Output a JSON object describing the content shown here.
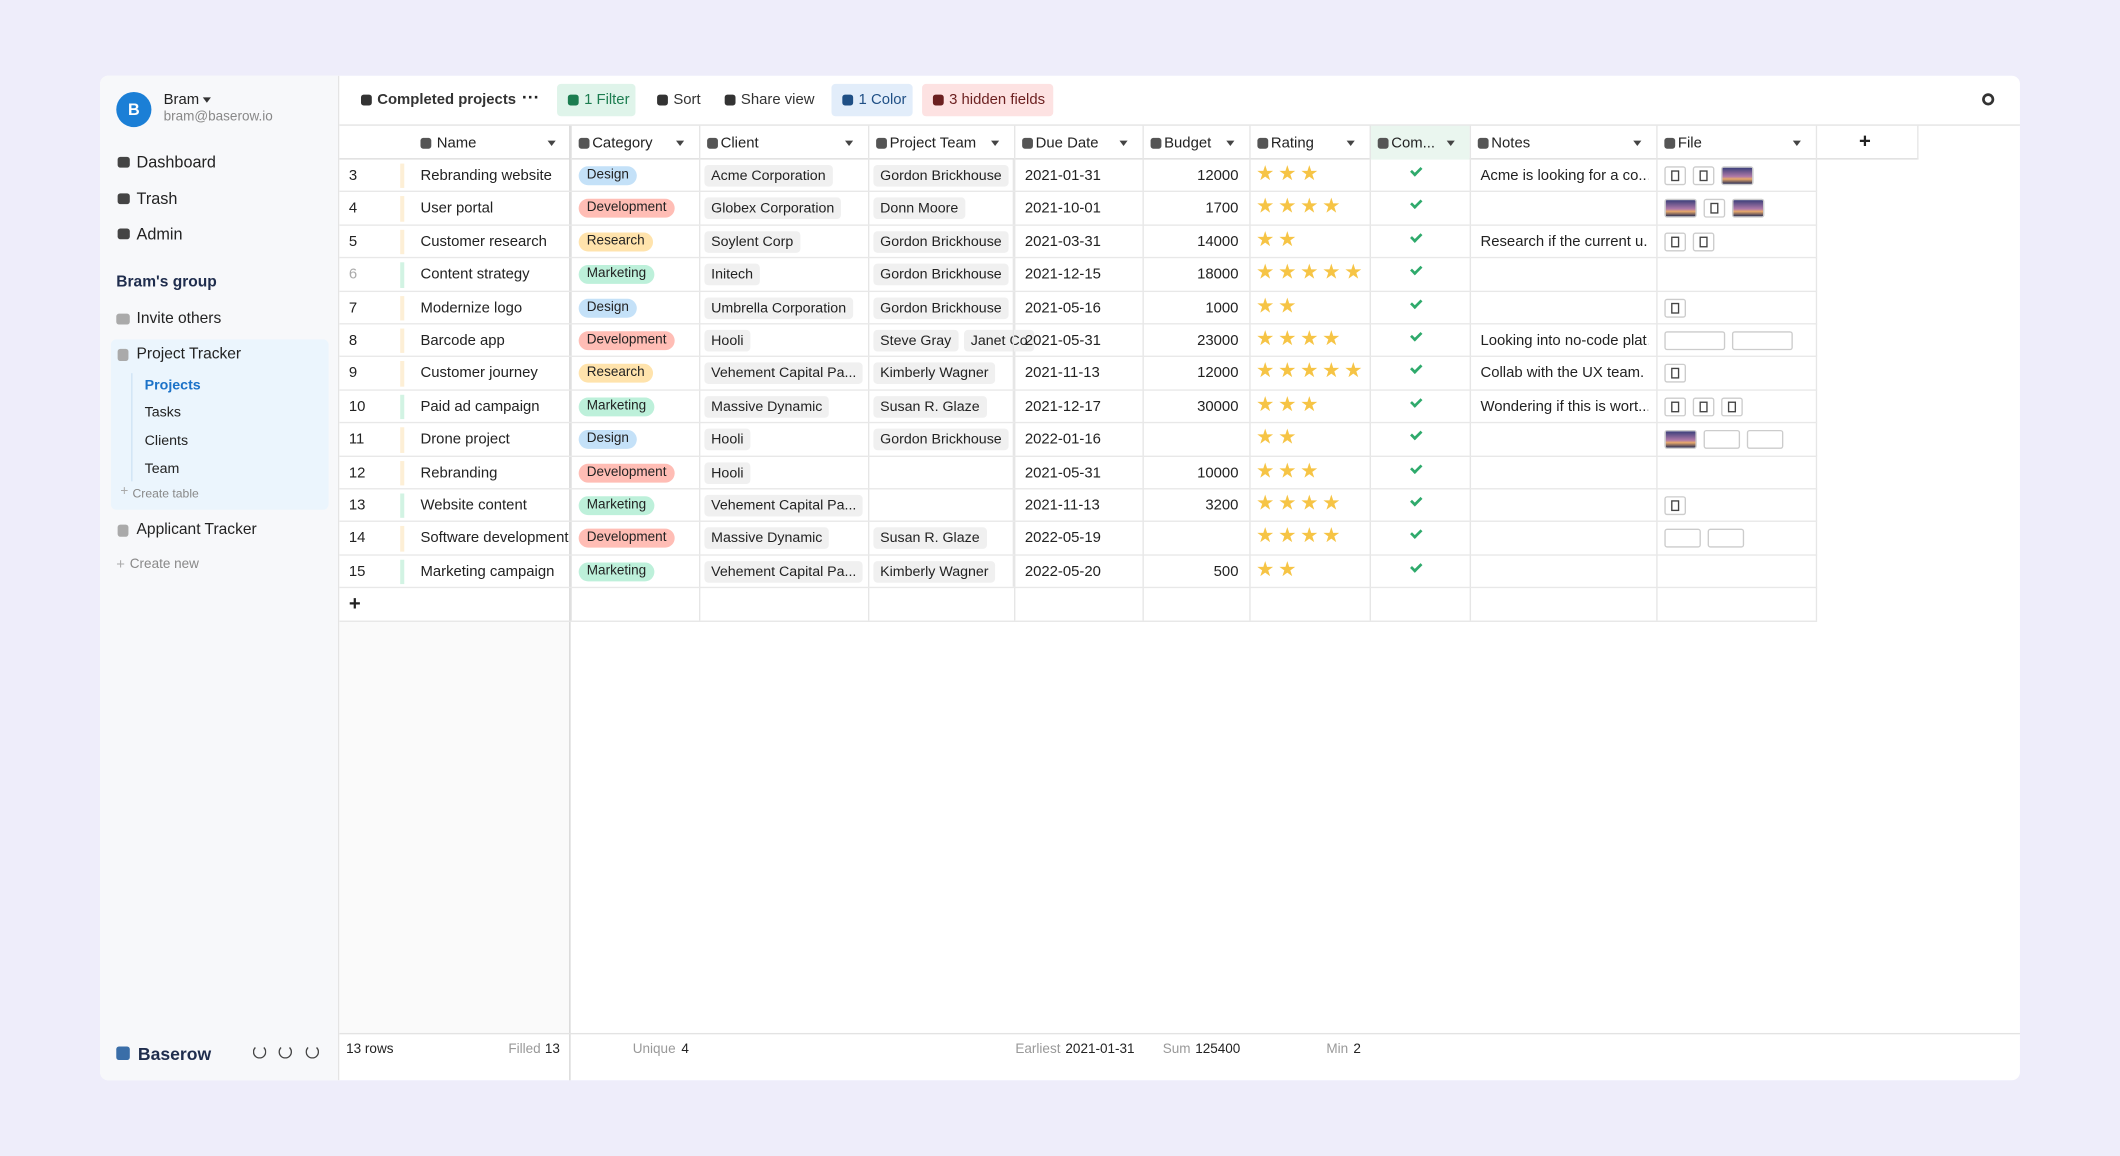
{
  "user": {
    "initial": "B",
    "name": "Bram",
    "email": "bram@baserow.io"
  },
  "nav": [
    "Dashboard",
    "Trash",
    "Admin"
  ],
  "group": {
    "title": "Bram's group",
    "invite": "Invite others"
  },
  "databases": [
    {
      "name": "Project Tracker",
      "tables": [
        "Projects",
        "Tasks",
        "Clients",
        "Team"
      ],
      "create_table": "Create table"
    },
    {
      "name": "Applicant Tracker"
    }
  ],
  "create_new": "Create new",
  "brand": "Baserow",
  "toolbar": {
    "view": "Completed projects",
    "filter": "1 Filter",
    "sort": "Sort",
    "share": "Share view",
    "color": "1 Color",
    "hidden": "3 hidden fields"
  },
  "table": {
    "columns": [
      "Name",
      "Category",
      "Client",
      "Project Team",
      "Due Date",
      "Budget",
      "Rating",
      "Com...",
      "Notes",
      "File"
    ],
    "rows": [
      {
        "id": 3,
        "name": "Rebranding website",
        "category": "Design",
        "client": "Acme Corporation",
        "team": [
          "Gordon Brickhouse"
        ],
        "due_date": "2021-01-31",
        "budget": 12000,
        "rating": 3,
        "completed": true,
        "notes": "Acme is looking for a co..."
      },
      {
        "id": 4,
        "name": "User portal",
        "category": "Development",
        "client": "Globex Corporation",
        "team": [
          "Donn Moore"
        ],
        "due_date": "2021-10-01",
        "budget": 1700,
        "rating": 4,
        "completed": true,
        "notes": null
      },
      {
        "id": 5,
        "name": "Customer research",
        "category": "Research",
        "client": "Soylent Corp",
        "team": [
          "Gordon Brickhouse"
        ],
        "due_date": "2021-03-31",
        "budget": 14000,
        "rating": 2,
        "completed": true,
        "notes": "Research if the current u..."
      },
      {
        "id": 6,
        "name": "Content strategy",
        "category": "Marketing",
        "client": "Initech",
        "team": [
          "Gordon Brickhouse"
        ],
        "due_date": "2021-12-15",
        "budget": 18000,
        "rating": 5,
        "completed": true,
        "notes": null
      },
      {
        "id": 7,
        "name": "Modernize logo",
        "category": "Design",
        "client": "Umbrella Corporation",
        "team": [
          "Gordon Brickhouse"
        ],
        "due_date": "2021-05-16",
        "budget": 1000,
        "rating": 2,
        "completed": true,
        "notes": null
      },
      {
        "id": 8,
        "name": "Barcode app",
        "category": "Development",
        "client": "Hooli",
        "team": [
          "Steve Gray",
          "Janet Co"
        ],
        "due_date": "2021-05-31",
        "budget": 23000,
        "rating": 4,
        "completed": true,
        "notes": "Looking into no-code plat..."
      },
      {
        "id": 9,
        "name": "Customer journey",
        "category": "Research",
        "client": "Vehement Capital Pa...",
        "team": [
          "Kimberly Wagner"
        ],
        "due_date": "2021-11-13",
        "budget": 12000,
        "rating": 5,
        "completed": true,
        "notes": "Collab with the UX team."
      },
      {
        "id": 10,
        "name": "Paid ad campaign",
        "category": "Marketing",
        "client": "Massive Dynamic",
        "team": [
          "Susan R. Glaze"
        ],
        "due_date": "2021-12-17",
        "budget": 30000,
        "rating": 3,
        "completed": true,
        "notes": "Wondering if this is wort..."
      },
      {
        "id": 11,
        "name": "Drone project",
        "category": "Design",
        "client": "Hooli",
        "team": [
          "Gordon Brickhouse"
        ],
        "due_date": "2022-01-16",
        "budget": null,
        "rating": 2,
        "completed": true,
        "notes": null
      },
      {
        "id": 12,
        "name": "Rebranding",
        "category": "Development",
        "client": "Hooli",
        "team": [],
        "due_date": "2021-05-31",
        "budget": 10000,
        "rating": 3,
        "completed": true,
        "notes": null
      },
      {
        "id": 13,
        "name": "Website content",
        "category": "Marketing",
        "client": "Vehement Capital Pa...",
        "team": [],
        "due_date": "2021-11-13",
        "budget": 3200,
        "rating": 4,
        "completed": true,
        "notes": null
      },
      {
        "id": 14,
        "name": "Software development",
        "category": "Development",
        "client": "Massive Dynamic",
        "team": [
          "Susan R. Glaze"
        ],
        "due_date": "2022-05-19",
        "budget": null,
        "rating": 4,
        "completed": true,
        "notes": null
      },
      {
        "id": 15,
        "name": "Marketing campaign",
        "category": "Marketing",
        "client": "Vehement Capital Pa...",
        "team": [
          "Kimberly Wagner"
        ],
        "due_date": "2022-05-20",
        "budget": 500,
        "rating": 2,
        "completed": true,
        "notes": null
      }
    ]
  },
  "footer": {
    "rows": "13 rows",
    "filled_label": "Filled",
    "filled": 13,
    "unique_label": "Unique",
    "unique": 4,
    "earliest_label": "Earliest",
    "earliest": "2021-01-31",
    "sum_label": "Sum",
    "sum": 125400,
    "min_label": "Min",
    "min": 2
  }
}
